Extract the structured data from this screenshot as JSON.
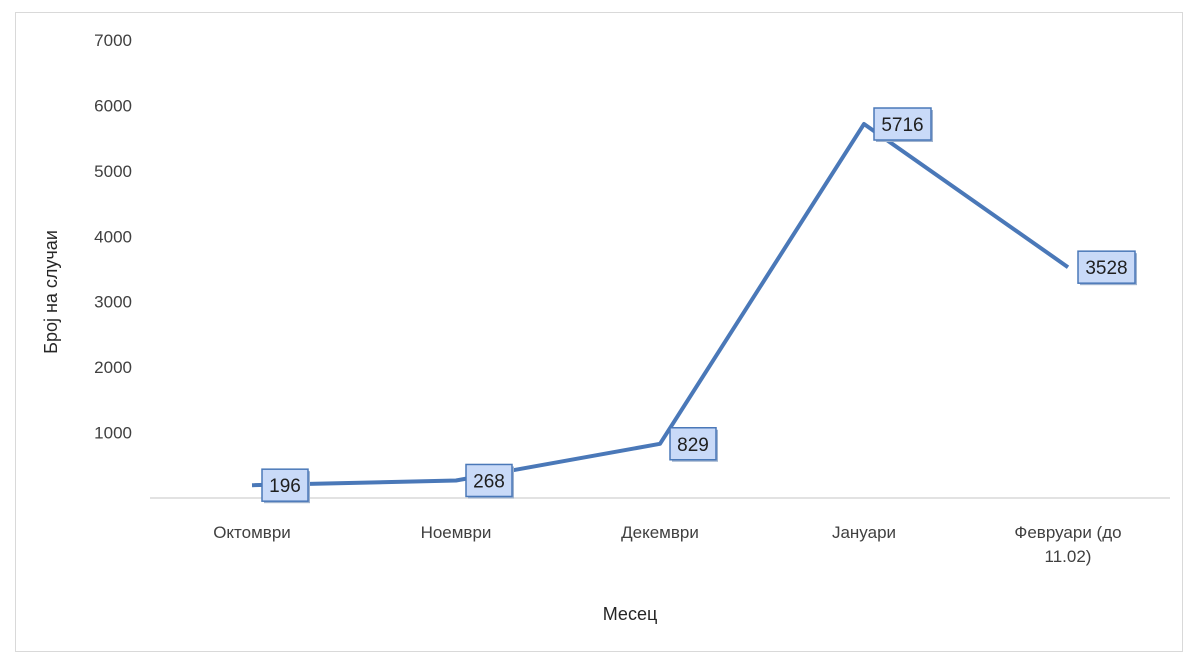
{
  "chart_data": {
    "type": "line",
    "categories": [
      "Октомври",
      "Ноември",
      "Декември",
      "Јануари",
      "Февруари (до 11.02)"
    ],
    "series": [
      {
        "values": [
          196,
          268,
          829,
          5716,
          3528
        ],
        "color": "#4a78b8"
      }
    ],
    "data_labels": [
      "196",
      "268",
      "829",
      "5716",
      "3528"
    ],
    "xlabel": "Месец",
    "ylabel": "Број на случаи",
    "ylim": [
      0,
      7000
    ],
    "yticks": [
      1000,
      2000,
      3000,
      4000,
      5000,
      6000,
      7000
    ],
    "ytick_labels": [
      "1000",
      "2000",
      "3000",
      "4000",
      "5000",
      "6000",
      "7000"
    ],
    "grid": false,
    "legend": "none",
    "label_fill": "#c9daf8",
    "label_border": "#4a78b8"
  }
}
